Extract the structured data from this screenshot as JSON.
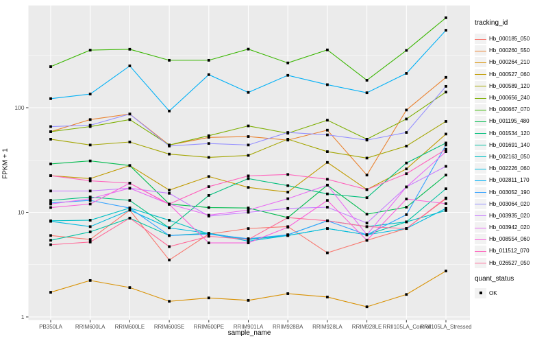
{
  "chart_data": {
    "type": "line",
    "title": "",
    "xlabel": "sample_name",
    "ylabel": "FPKM + 1",
    "y_scale": "log10",
    "y_ticks": [
      1,
      10,
      100
    ],
    "ylim": [
      1,
      920
    ],
    "grid": true,
    "panel_bg": "#EBEBEB",
    "grid_color": "#FFFFFF",
    "tick_label_color": "#4D4D4D",
    "point_color": "#000000",
    "legend_title": "tracking_id",
    "legend_position": "right",
    "categories": [
      "PB350LA",
      "RRIM600LA",
      "RRIM600LE",
      "RRIM600SE",
      "RRIM600PE",
      "RRIM901LA",
      "RRIM928BA",
      "RRIM928LA",
      "RRIM928LE",
      "RRII105LA_Control",
      "RRII105LA_Stressed"
    ],
    "series": [
      {
        "name": "Hb_000185_050",
        "color": "#F8766D",
        "values": [
          6.0,
          5.5,
          10.5,
          3.5,
          6.2,
          7.0,
          7.3,
          4.1,
          5.4,
          7.0,
          13.5
        ]
      },
      {
        "name": "Hb_000260_550",
        "color": "#EA8331",
        "values": [
          59,
          77,
          87,
          44,
          52,
          53,
          49,
          61,
          22.7,
          95,
          195
        ]
      },
      {
        "name": "Hb_000264_210",
        "color": "#D89000",
        "values": [
          1.72,
          2.23,
          1.91,
          1.41,
          1.52,
          1.44,
          1.67,
          1.55,
          1.25,
          1.64,
          2.75
        ]
      },
      {
        "name": "Hb_000527_060",
        "color": "#C09B00",
        "values": [
          22.4,
          21,
          28,
          16.3,
          22,
          17.3,
          15.6,
          30,
          16.5,
          26,
          56
        ]
      },
      {
        "name": "Hb_000589_120",
        "color": "#A3A500",
        "values": [
          50,
          44,
          47,
          36,
          33.5,
          35,
          50,
          38,
          33,
          43,
          74
        ]
      },
      {
        "name": "Hb_000656_240",
        "color": "#7CAE00",
        "values": [
          59,
          66,
          77,
          44,
          54,
          67,
          57,
          76,
          50,
          78,
          141
        ]
      },
      {
        "name": "Hb_000667_070",
        "color": "#39B600",
        "values": [
          247,
          355,
          362,
          284,
          284,
          363,
          268,
          357,
          183,
          353,
          724
        ]
      },
      {
        "name": "Hb_001195_480",
        "color": "#00BB4E",
        "values": [
          29,
          31,
          28,
          12,
          11.1,
          11,
          8.9,
          18.2,
          9.6,
          11.2,
          22.7
        ]
      },
      {
        "name": "Hb_001534_120",
        "color": "#00BF7D",
        "values": [
          13,
          14,
          13,
          7.1,
          14.5,
          21,
          18,
          15,
          13.8,
          29.6,
          46
        ]
      },
      {
        "name": "Hb_001691_140",
        "color": "#00C1A3",
        "values": [
          5.4,
          6.5,
          8.8,
          6.0,
          6.3,
          5.5,
          6.0,
          7.0,
          6.1,
          8.1,
          16.8
        ]
      },
      {
        "name": "Hb_002163_050",
        "color": "#00BFC4",
        "values": [
          8.3,
          8.4,
          11,
          8.4,
          6.2,
          5.5,
          6.1,
          8.3,
          7.3,
          8.1,
          10.4
        ]
      },
      {
        "name": "Hb_002226_060",
        "color": "#00BAE0",
        "values": [
          8.2,
          7.3,
          10.5,
          7.1,
          6.3,
          5.3,
          6.0,
          7.0,
          6.1,
          7.0,
          10.9
        ]
      },
      {
        "name": "Hb_002811_170",
        "color": "#00B0F6",
        "values": [
          122,
          135,
          251,
          93,
          207,
          140,
          204,
          166,
          139,
          213,
          550
        ]
      },
      {
        "name": "Hb_003052_190",
        "color": "#35A2FF",
        "values": [
          12.3,
          13,
          11,
          6.0,
          6.2,
          5.6,
          6.1,
          8.3,
          6.1,
          9.5,
          44
        ]
      },
      {
        "name": "Hb_003064_020",
        "color": "#9590FF",
        "values": [
          66,
          68,
          87,
          43,
          45.5,
          44,
          58,
          55,
          49,
          58,
          160
        ]
      },
      {
        "name": "Hb_003935_020",
        "color": "#C77CFF",
        "values": [
          16,
          16,
          17,
          15.2,
          9.2,
          10,
          10.9,
          11.2,
          7.9,
          17.5,
          27.5
        ]
      },
      {
        "name": "Hb_003942_020",
        "color": "#E76BF3",
        "values": [
          12,
          13.5,
          17,
          12,
          9.4,
          10.5,
          13.5,
          18.2,
          6.1,
          17.5,
          38
        ]
      },
      {
        "name": "Hb_008554_060",
        "color": "#FA62DB",
        "values": [
          11.1,
          12,
          19,
          11.9,
          5.1,
          5.1,
          7.2,
          13,
          5.4,
          13.4,
          12.1
        ]
      },
      {
        "name": "Hb_011512_070",
        "color": "#FF62BC",
        "values": [
          22.4,
          20,
          19,
          12,
          17.6,
          22.3,
          23,
          20.7,
          16.5,
          23.4,
          40
        ]
      },
      {
        "name": "Hb_026527_050",
        "color": "#FF6A98",
        "values": [
          4.9,
          5.2,
          8.8,
          4.7,
          5.9,
          5.5,
          8.9,
          8.3,
          7.3,
          7.0,
          13.7
        ]
      }
    ],
    "quant_status": {
      "title": "quant_status",
      "items": [
        {
          "label": "OK",
          "marker": "square",
          "color": "#000000"
        }
      ]
    }
  }
}
